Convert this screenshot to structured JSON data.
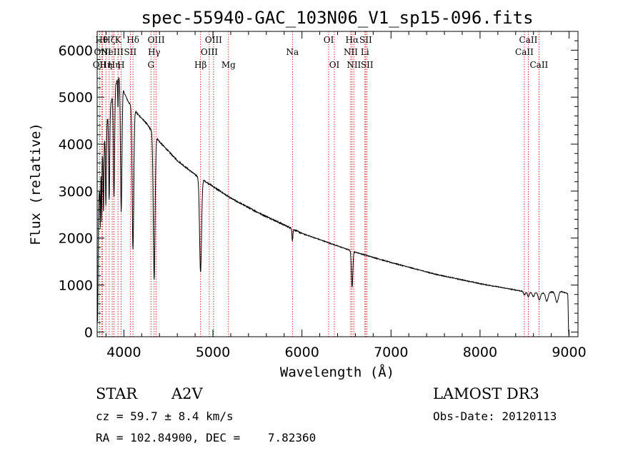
{
  "chart_data": {
    "type": "line",
    "title": "spec-55940-GAC_103N06_V1_sp15-096.fits",
    "xlabel": "Wavelength (Å)",
    "ylabel": "Flux (relative)",
    "xlim": [
      3700,
      9100
    ],
    "ylim": [
      -100,
      6400
    ],
    "x_ticks": [
      "4000",
      "5000",
      "6000",
      "7000",
      "8000",
      "9000"
    ],
    "x_tick_values": [
      4000,
      5000,
      6000,
      7000,
      8000,
      9000
    ],
    "y_ticks": [
      "0",
      "1000",
      "2000",
      "3000",
      "4000",
      "5000",
      "6000"
    ],
    "y_tick_values": [
      0,
      1000,
      2000,
      3000,
      4000,
      5000,
      6000
    ],
    "continuum": {
      "x": [
        3700,
        3760,
        3820,
        3880,
        3940,
        3990,
        4050,
        4150,
        4250,
        4400,
        4600,
        4800,
        5000,
        5200,
        5500,
        5800,
        6000,
        6300,
        6600,
        7000,
        7500,
        8000,
        8500,
        8700,
        8900,
        8980
      ],
      "y": [
        2400,
        3800,
        4600,
        5100,
        5450,
        5150,
        4900,
        4650,
        4450,
        4050,
        3650,
        3350,
        3100,
        2850,
        2550,
        2280,
        2100,
        1900,
        1700,
        1480,
        1230,
        1030,
        860,
        830,
        870,
        820
      ]
    },
    "absorption": [
      {
        "x": 3705,
        "depth": 2300,
        "w": 5
      },
      {
        "x": 3735,
        "depth": 1000,
        "w": 3
      },
      {
        "x": 3750,
        "depth": 1200,
        "w": 3
      },
      {
        "x": 3771,
        "depth": 1400,
        "w": 4
      },
      {
        "x": 3798,
        "depth": 1600,
        "w": 5
      },
      {
        "x": 3835,
        "depth": 1900,
        "w": 6
      },
      {
        "x": 3889,
        "depth": 2300,
        "w": 7
      },
      {
        "x": 3934,
        "depth": 700,
        "w": 3
      },
      {
        "x": 3970,
        "depth": 2700,
        "w": 8
      },
      {
        "x": 4102,
        "depth": 3000,
        "w": 9
      },
      {
        "x": 4340,
        "depth": 3100,
        "w": 10
      },
      {
        "x": 4861,
        "depth": 2000,
        "w": 11
      },
      {
        "x": 5893,
        "depth": 260,
        "w": 5
      },
      {
        "x": 6563,
        "depth": 780,
        "w": 8
      },
      {
        "x": 8498,
        "depth": 70,
        "w": 10
      },
      {
        "x": 8542,
        "depth": 100,
        "w": 10
      },
      {
        "x": 8598,
        "depth": 90,
        "w": 12
      },
      {
        "x": 8665,
        "depth": 150,
        "w": 13
      },
      {
        "x": 8750,
        "depth": 180,
        "w": 14
      },
      {
        "x": 8863,
        "depth": 230,
        "w": 16
      },
      {
        "x": 8995,
        "depth": 800,
        "w": 4
      }
    ],
    "line_markers": [
      {
        "x": 3727,
        "label": "OII",
        "row": 2
      },
      {
        "x": 3750,
        "label": "Hθ",
        "row": 0
      },
      {
        "x": 3760,
        "label": "OIII",
        "row": 1
      },
      {
        "x": 3798,
        "label": "Hη",
        "row": 2
      },
      {
        "x": 3835,
        "label": "Hζ",
        "row": 0
      },
      {
        "x": 3869,
        "label": "NeIII",
        "row": 1
      },
      {
        "x": 3889,
        "label": "Hη",
        "row": 2
      },
      {
        "x": 3934,
        "label": "K",
        "row": 0
      },
      {
        "x": 3968,
        "label": "H",
        "row": 2
      },
      {
        "x": 4072,
        "label": "SII",
        "row": 1
      },
      {
        "x": 4102,
        "label": "Hδ",
        "row": 0
      },
      {
        "x": 4304,
        "label": "G",
        "row": 2
      },
      {
        "x": 4340,
        "label": "Hγ",
        "row": 1
      },
      {
        "x": 4363,
        "label": "OIII",
        "row": 0
      },
      {
        "x": 4861,
        "label": "Hβ",
        "row": 2
      },
      {
        "x": 4959,
        "label": "OIII",
        "row": 1
      },
      {
        "x": 5007,
        "label": "OIII",
        "row": 0
      },
      {
        "x": 5175,
        "label": "Mg",
        "row": 2
      },
      {
        "x": 5893,
        "label": "Na",
        "row": 1
      },
      {
        "x": 6300,
        "label": "OI",
        "row": 0
      },
      {
        "x": 6364,
        "label": "OI",
        "row": 2
      },
      {
        "x": 6548,
        "label": "NII",
        "row": 1
      },
      {
        "x": 6563,
        "label": "Hα",
        "row": 0
      },
      {
        "x": 6583,
        "label": "NII",
        "row": 2
      },
      {
        "x": 6707,
        "label": "Li",
        "row": 1
      },
      {
        "x": 6716,
        "label": "SII",
        "row": 0
      },
      {
        "x": 6731,
        "label": "SII",
        "row": 2
      },
      {
        "x": 8498,
        "label": "CaII",
        "row": 1
      },
      {
        "x": 8542,
        "label": "CaII",
        "row": 0
      },
      {
        "x": 8662,
        "label": "CaII",
        "row": 2
      }
    ],
    "marker_color": "#cc0000",
    "line_color": "#000000"
  },
  "info": {
    "class_label": "STAR",
    "subclass": "A2V",
    "survey": "LAMOST DR3",
    "redshift": "cz = 59.7 ± 8.4 km/s",
    "obs_date": "Obs-Date: 20120113",
    "coords": "RA = 102.84900, DEC =    7.82360"
  }
}
